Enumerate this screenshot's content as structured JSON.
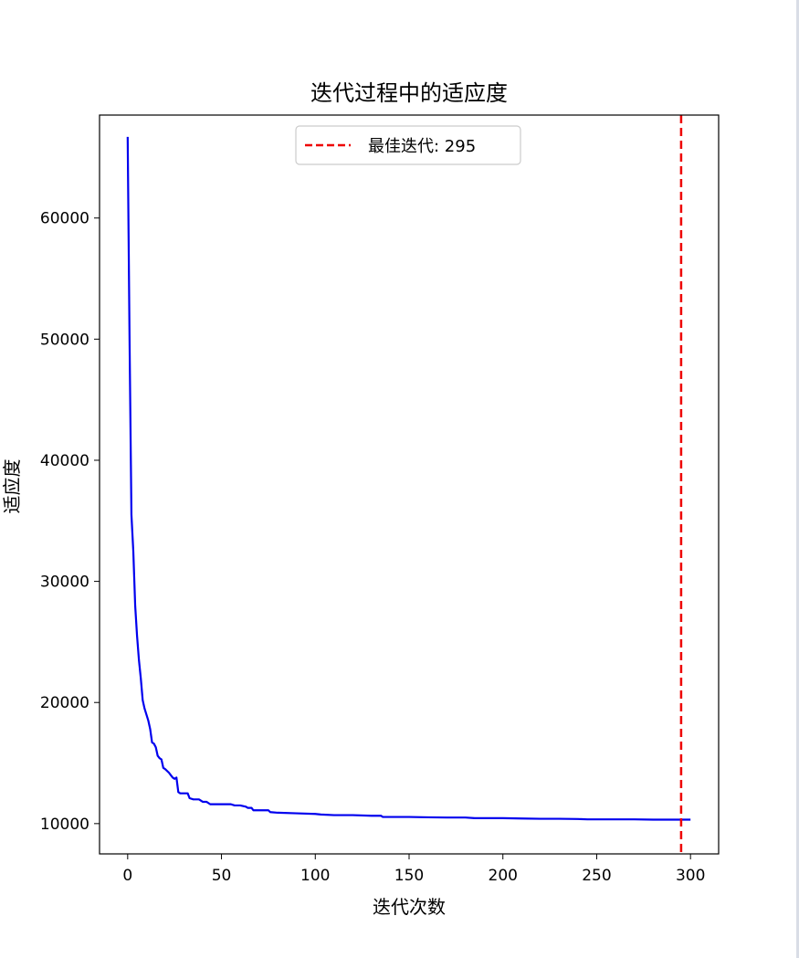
{
  "chart_data": {
    "type": "line",
    "title": "迭代过程中的适应度",
    "xlabel": "迭代次数",
    "ylabel": "适应度",
    "xlim": [
      -15,
      315
    ],
    "ylim": [
      7500,
      68500
    ],
    "xticks": [
      0,
      50,
      100,
      150,
      200,
      250,
      300
    ],
    "yticks": [
      10000,
      20000,
      30000,
      40000,
      50000,
      60000
    ],
    "grid": false,
    "legend_position": "top-center",
    "series": [
      {
        "color": "#0000ee",
        "x": [
          0,
          1,
          2,
          3,
          4,
          5,
          6,
          7,
          8,
          9,
          10,
          11,
          12,
          13,
          14,
          15,
          16,
          17,
          18,
          19,
          20,
          22,
          23,
          24,
          25,
          26,
          27,
          28,
          30,
          32,
          33,
          35,
          38,
          40,
          42,
          44,
          46,
          50,
          55,
          57,
          60,
          63,
          64,
          66,
          67,
          70,
          75,
          76,
          80,
          90,
          100,
          103,
          110,
          120,
          130,
          135,
          136,
          150,
          160,
          170,
          180,
          185,
          200,
          210,
          220,
          230,
          240,
          245,
          250,
          260,
          270,
          280,
          290,
          295,
          300
        ],
        "y": [
          66700,
          50000,
          35500,
          32500,
          28000,
          25500,
          23500,
          22000,
          20200,
          19500,
          19000,
          18500,
          17800,
          16700,
          16600,
          16300,
          15600,
          15400,
          15300,
          14600,
          14500,
          14200,
          14000,
          13800,
          13700,
          13800,
          12600,
          12500,
          12500,
          12500,
          12100,
          12000,
          12000,
          11800,
          11800,
          11600,
          11600,
          11600,
          11600,
          11500,
          11500,
          11400,
          11300,
          11300,
          11100,
          11100,
          11100,
          10950,
          10900,
          10850,
          10800,
          10750,
          10700,
          10700,
          10650,
          10650,
          10550,
          10550,
          10520,
          10500,
          10500,
          10450,
          10450,
          10420,
          10400,
          10400,
          10380,
          10350,
          10350,
          10350,
          10350,
          10330,
          10330,
          10330,
          10330
        ]
      }
    ],
    "vline": {
      "x": 295,
      "color": "#ee0000",
      "style": "dashed",
      "label": "最佳迭代: 295"
    }
  }
}
